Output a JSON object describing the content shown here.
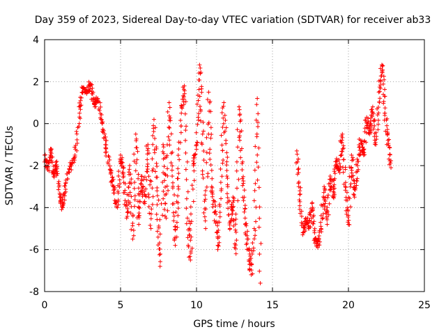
{
  "chart_data": {
    "type": "scatter",
    "title": "Day 359 of 2023, Sidereal Day-to-day VTEC variation (SDTVAR) for receiver ab33",
    "xlabel": "GPS time / hours",
    "ylabel": "SDTVAR / TECUs",
    "xlim": [
      0,
      25
    ],
    "ylim": [
      -8,
      4
    ],
    "x_ticks": [
      0,
      5,
      10,
      15,
      20,
      25
    ],
    "y_ticks": [
      -8,
      -6,
      -4,
      -2,
      0,
      2,
      4
    ],
    "grid": true,
    "marker": "plus",
    "series_color": "#ff0000",
    "series": [
      {
        "name": "SDTVAR",
        "segments": [
          {
            "x": [
              0.0,
              0.2,
              0.4,
              0.6,
              0.8,
              1.0,
              1.2,
              1.4,
              1.7,
              2.0,
              2.3,
              2.5,
              2.8,
              3.0,
              3.3,
              3.5,
              3.8,
              4.0,
              4.3,
              4.5,
              4.8,
              5.0,
              5.2,
              5.4,
              5.6,
              5.8,
              6.0,
              6.2,
              6.4,
              6.6,
              6.8,
              7.0,
              7.2,
              7.4,
              7.6,
              7.8,
              8.0,
              8.2,
              8.4,
              8.6,
              8.8,
              9.0,
              9.2,
              9.4,
              9.6,
              9.8,
              10.0,
              10.2,
              10.4,
              10.6,
              10.8,
              11.0,
              11.2,
              11.4,
              11.6,
              11.8,
              12.0,
              12.2,
              12.4,
              12.6,
              12.8,
              13.0,
              13.2,
              13.4,
              13.6,
              13.8,
              14.0,
              14.2
            ],
            "y": [
              -1.5,
              -2.2,
              -1.2,
              -2.5,
              -1.8,
              -3.5,
              -4.0,
              -2.8,
              -2.0,
              -1.5,
              0.5,
              1.7,
              1.5,
              1.9,
              0.8,
              1.2,
              0.0,
              -1.0,
              -2.2,
              -3.0,
              -4.0,
              -1.5,
              -2.5,
              -4.5,
              -2.0,
              -5.5,
              -0.5,
              -4.8,
              -2.5,
              -3.8,
              -1.0,
              -5.0,
              0.2,
              -3.2,
              -6.8,
              -1.0,
              -4.5,
              1.0,
              -2.5,
              -5.8,
              -3.0,
              0.5,
              1.8,
              -4.5,
              -6.5,
              -2.0,
              -1.0,
              2.8,
              -0.5,
              -5.0,
              1.5,
              -3.0,
              -4.2,
              -6.0,
              -2.8,
              1.0,
              -2.5,
              -5.0,
              -3.5,
              -6.2,
              0.8,
              -2.2,
              -4.5,
              -6.0,
              -7.2,
              -5.0,
              1.2,
              -7.6
            ]
          },
          {
            "x": [
              16.6,
              16.8,
              17.0,
              17.2,
              17.4,
              17.6,
              17.8,
              18.0,
              18.2,
              18.4,
              18.6,
              18.8,
              19.0,
              19.2,
              19.4,
              19.6,
              19.8,
              20.0,
              20.2,
              20.4,
              20.6,
              20.8,
              21.0,
              21.2,
              21.4,
              21.6,
              21.8,
              22.0,
              22.2,
              22.4,
              22.6,
              22.8
            ],
            "y": [
              -1.3,
              -3.2,
              -5.2,
              -4.5,
              -5.0,
              -3.8,
              -5.5,
              -5.8,
              -5.0,
              -3.0,
              -4.8,
              -2.5,
              -3.5,
              -1.8,
              -2.2,
              -0.5,
              -3.0,
              -4.8,
              -1.5,
              -3.5,
              -2.0,
              -0.8,
              -1.5,
              0.3,
              -0.5,
              0.8,
              -1.0,
              1.5,
              2.8,
              0.5,
              -0.8,
              -2.1
            ]
          }
        ]
      }
    ]
  }
}
